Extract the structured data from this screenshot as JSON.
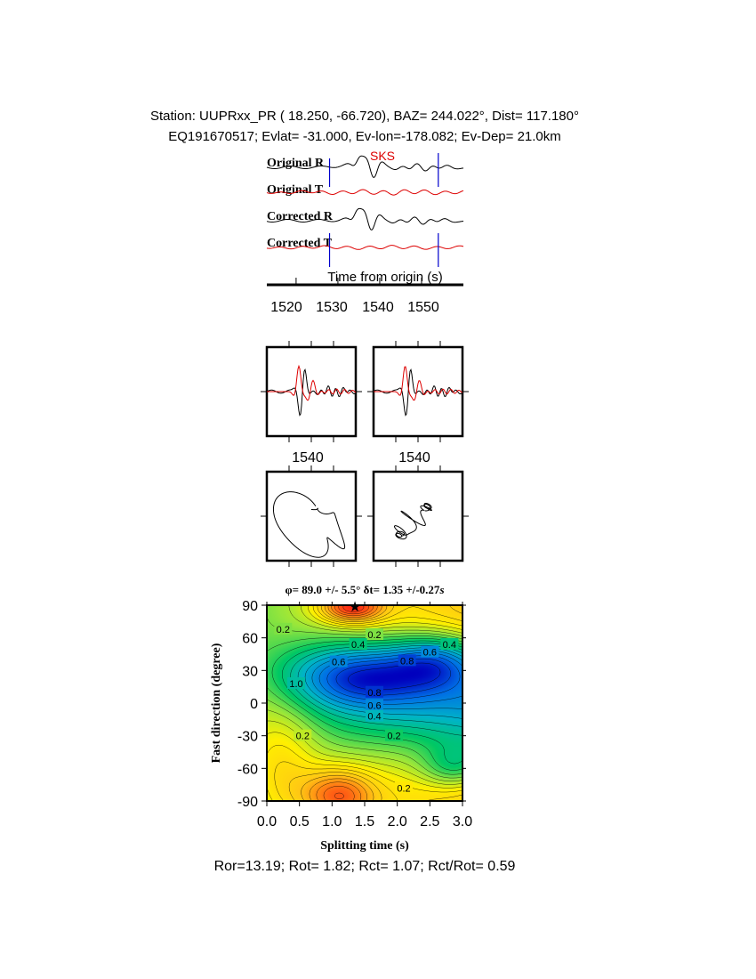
{
  "header": {
    "line1": "Station: UUPRxx_PR (  18.250,  -66.720), BAZ=  244.022°, Dist=  117.180°",
    "line2": "EQ191670517; Evlat= -31.000, Ev-lon=-178.082; Ev-Dep= 21.0km"
  },
  "colors": {
    "trace_black": "#000000",
    "trace_red": "#dd0000",
    "marker_blue": "#0000cc",
    "phase_red": "#dd0000"
  },
  "chart_data": [
    {
      "type": "line",
      "panel": "waveforms",
      "phase_label": "SKS",
      "traces": [
        {
          "label": "Original R",
          "color": "#000000"
        },
        {
          "label": "Original T",
          "color": "#dd0000"
        },
        {
          "label": "Corrected R",
          "color": "#000000"
        },
        {
          "label": "Corrected T",
          "color": "#dd0000"
        }
      ],
      "xlabel": "Time from origin (s)",
      "xlim": [
        1513,
        1560
      ],
      "xticks": [
        1520,
        1530,
        1540,
        1550
      ],
      "window_markers": [
        1528,
        1554
      ]
    },
    {
      "type": "line",
      "panel": "particle-motion-waveforms",
      "subpanels": [
        {
          "xtick": "1540"
        },
        {
          "xtick": "1540"
        }
      ]
    },
    {
      "type": "line",
      "panel": "particle-motion",
      "subpanels": [
        {
          "id": "original"
        },
        {
          "id": "corrected"
        }
      ]
    },
    {
      "type": "heatmap",
      "panel": "splitting-energy-grid",
      "title_parts": [
        "φ",
        "= 89.0 +/- 5.5°  ",
        "δ",
        "t= 1.35 +/-0.27",
        "s"
      ],
      "xlabel": "Splitting time (s)",
      "ylabel": "Fast direction (degree)",
      "xlim": [
        0,
        3
      ],
      "ylim": [
        -90,
        90
      ],
      "xticks": [
        "0.0",
        "0.5",
        "1.0",
        "1.5",
        "2.0",
        "2.5",
        "3.0"
      ],
      "yticks": [
        "90",
        "60",
        "30",
        "0",
        "-30",
        "-60",
        "-90"
      ],
      "best_fit": {
        "dt": 1.35,
        "phi": 89.0
      },
      "contour_labels": [
        {
          "text": "0.2",
          "dt": 0.25,
          "phi": 68
        },
        {
          "text": "0.2",
          "dt": 1.65,
          "phi": 63
        },
        {
          "text": "0.4",
          "dt": 1.4,
          "phi": 54
        },
        {
          "text": "0.4",
          "dt": 2.8,
          "phi": 54
        },
        {
          "text": "0.6",
          "dt": 2.5,
          "phi": 47
        },
        {
          "text": "0.8",
          "dt": 2.15,
          "phi": 39
        },
        {
          "text": "0.6",
          "dt": 1.1,
          "phi": 38
        },
        {
          "text": "1.0",
          "dt": 0.45,
          "phi": 18
        },
        {
          "text": "0.8",
          "dt": 1.65,
          "phi": 10
        },
        {
          "text": "0.6",
          "dt": 1.65,
          "phi": -2
        },
        {
          "text": "0.4",
          "dt": 1.65,
          "phi": -12
        },
        {
          "text": "0.2",
          "dt": 0.55,
          "phi": -30
        },
        {
          "text": "0.2",
          "dt": 1.95,
          "phi": -30
        },
        {
          "text": "0.2",
          "dt": 2.1,
          "phi": -78
        }
      ]
    }
  ],
  "footer": {
    "ratios": "Ror=13.19; Rot= 1.82; Rct= 1.07; Rct/Rot= 0.59"
  }
}
